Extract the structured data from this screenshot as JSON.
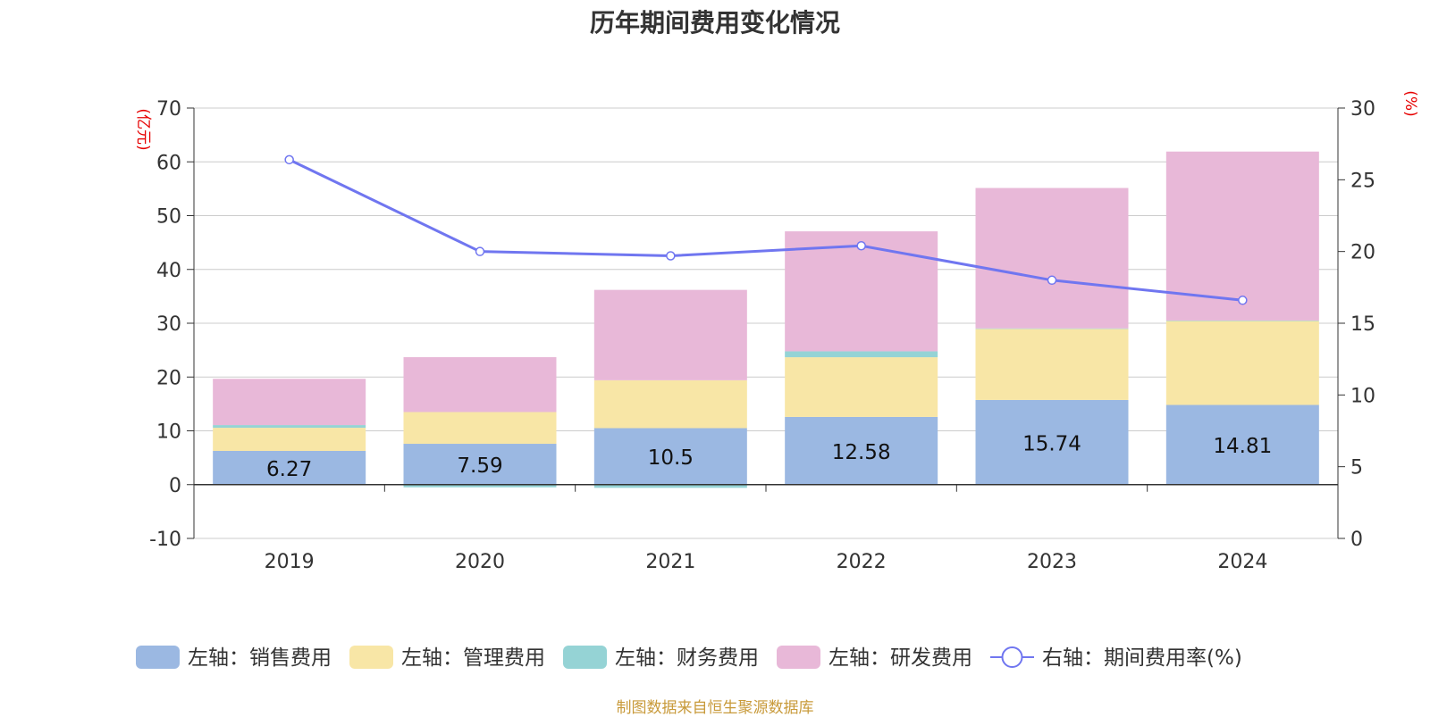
{
  "chart_data": {
    "type": "bar",
    "title": "历年期间费用变化情况",
    "categories": [
      "2019",
      "2020",
      "2021",
      "2022",
      "2023",
      "2024"
    ],
    "left_axis": {
      "unit": "(亿元)",
      "range": [
        -10,
        70
      ],
      "ticks": [
        -10,
        0,
        10,
        20,
        30,
        40,
        50,
        60,
        70
      ]
    },
    "right_axis": {
      "unit": "(%)",
      "range": [
        0,
        30
      ],
      "ticks": [
        0,
        5,
        10,
        15,
        20,
        25,
        30
      ]
    },
    "stacked": true,
    "grid": true,
    "legend_position": "bottom",
    "series": [
      {
        "name": "左轴：销售费用",
        "axis": "left",
        "type": "bar",
        "color": "#9bb8e2",
        "values": [
          6.27,
          7.59,
          10.5,
          12.58,
          15.74,
          14.81
        ],
        "show_labels": true
      },
      {
        "name": "左轴：管理费用",
        "axis": "left",
        "type": "bar",
        "color": "#f8e6a6",
        "values": [
          4.3,
          5.9,
          8.9,
          11.1,
          13.2,
          15.6
        ],
        "show_labels": false
      },
      {
        "name": "左轴：财务费用",
        "axis": "left",
        "type": "bar",
        "color": "#95d3d5",
        "values": [
          0.5,
          -0.5,
          -0.6,
          1.1,
          0.1,
          0.1
        ],
        "show_labels": false
      },
      {
        "name": "左轴：研发费用",
        "axis": "left",
        "type": "bar",
        "color": "#e8b8d8",
        "values": [
          8.6,
          10.2,
          16.8,
          22.3,
          26.1,
          31.4
        ],
        "show_labels": false
      },
      {
        "name": "右轴：期间费用率(%)",
        "axis": "right",
        "type": "line",
        "color": "#7076f0",
        "values": [
          26.4,
          20.0,
          19.7,
          20.4,
          18.0,
          16.6
        ]
      }
    ],
    "source": "制图数据来自恒生聚源数据库"
  }
}
